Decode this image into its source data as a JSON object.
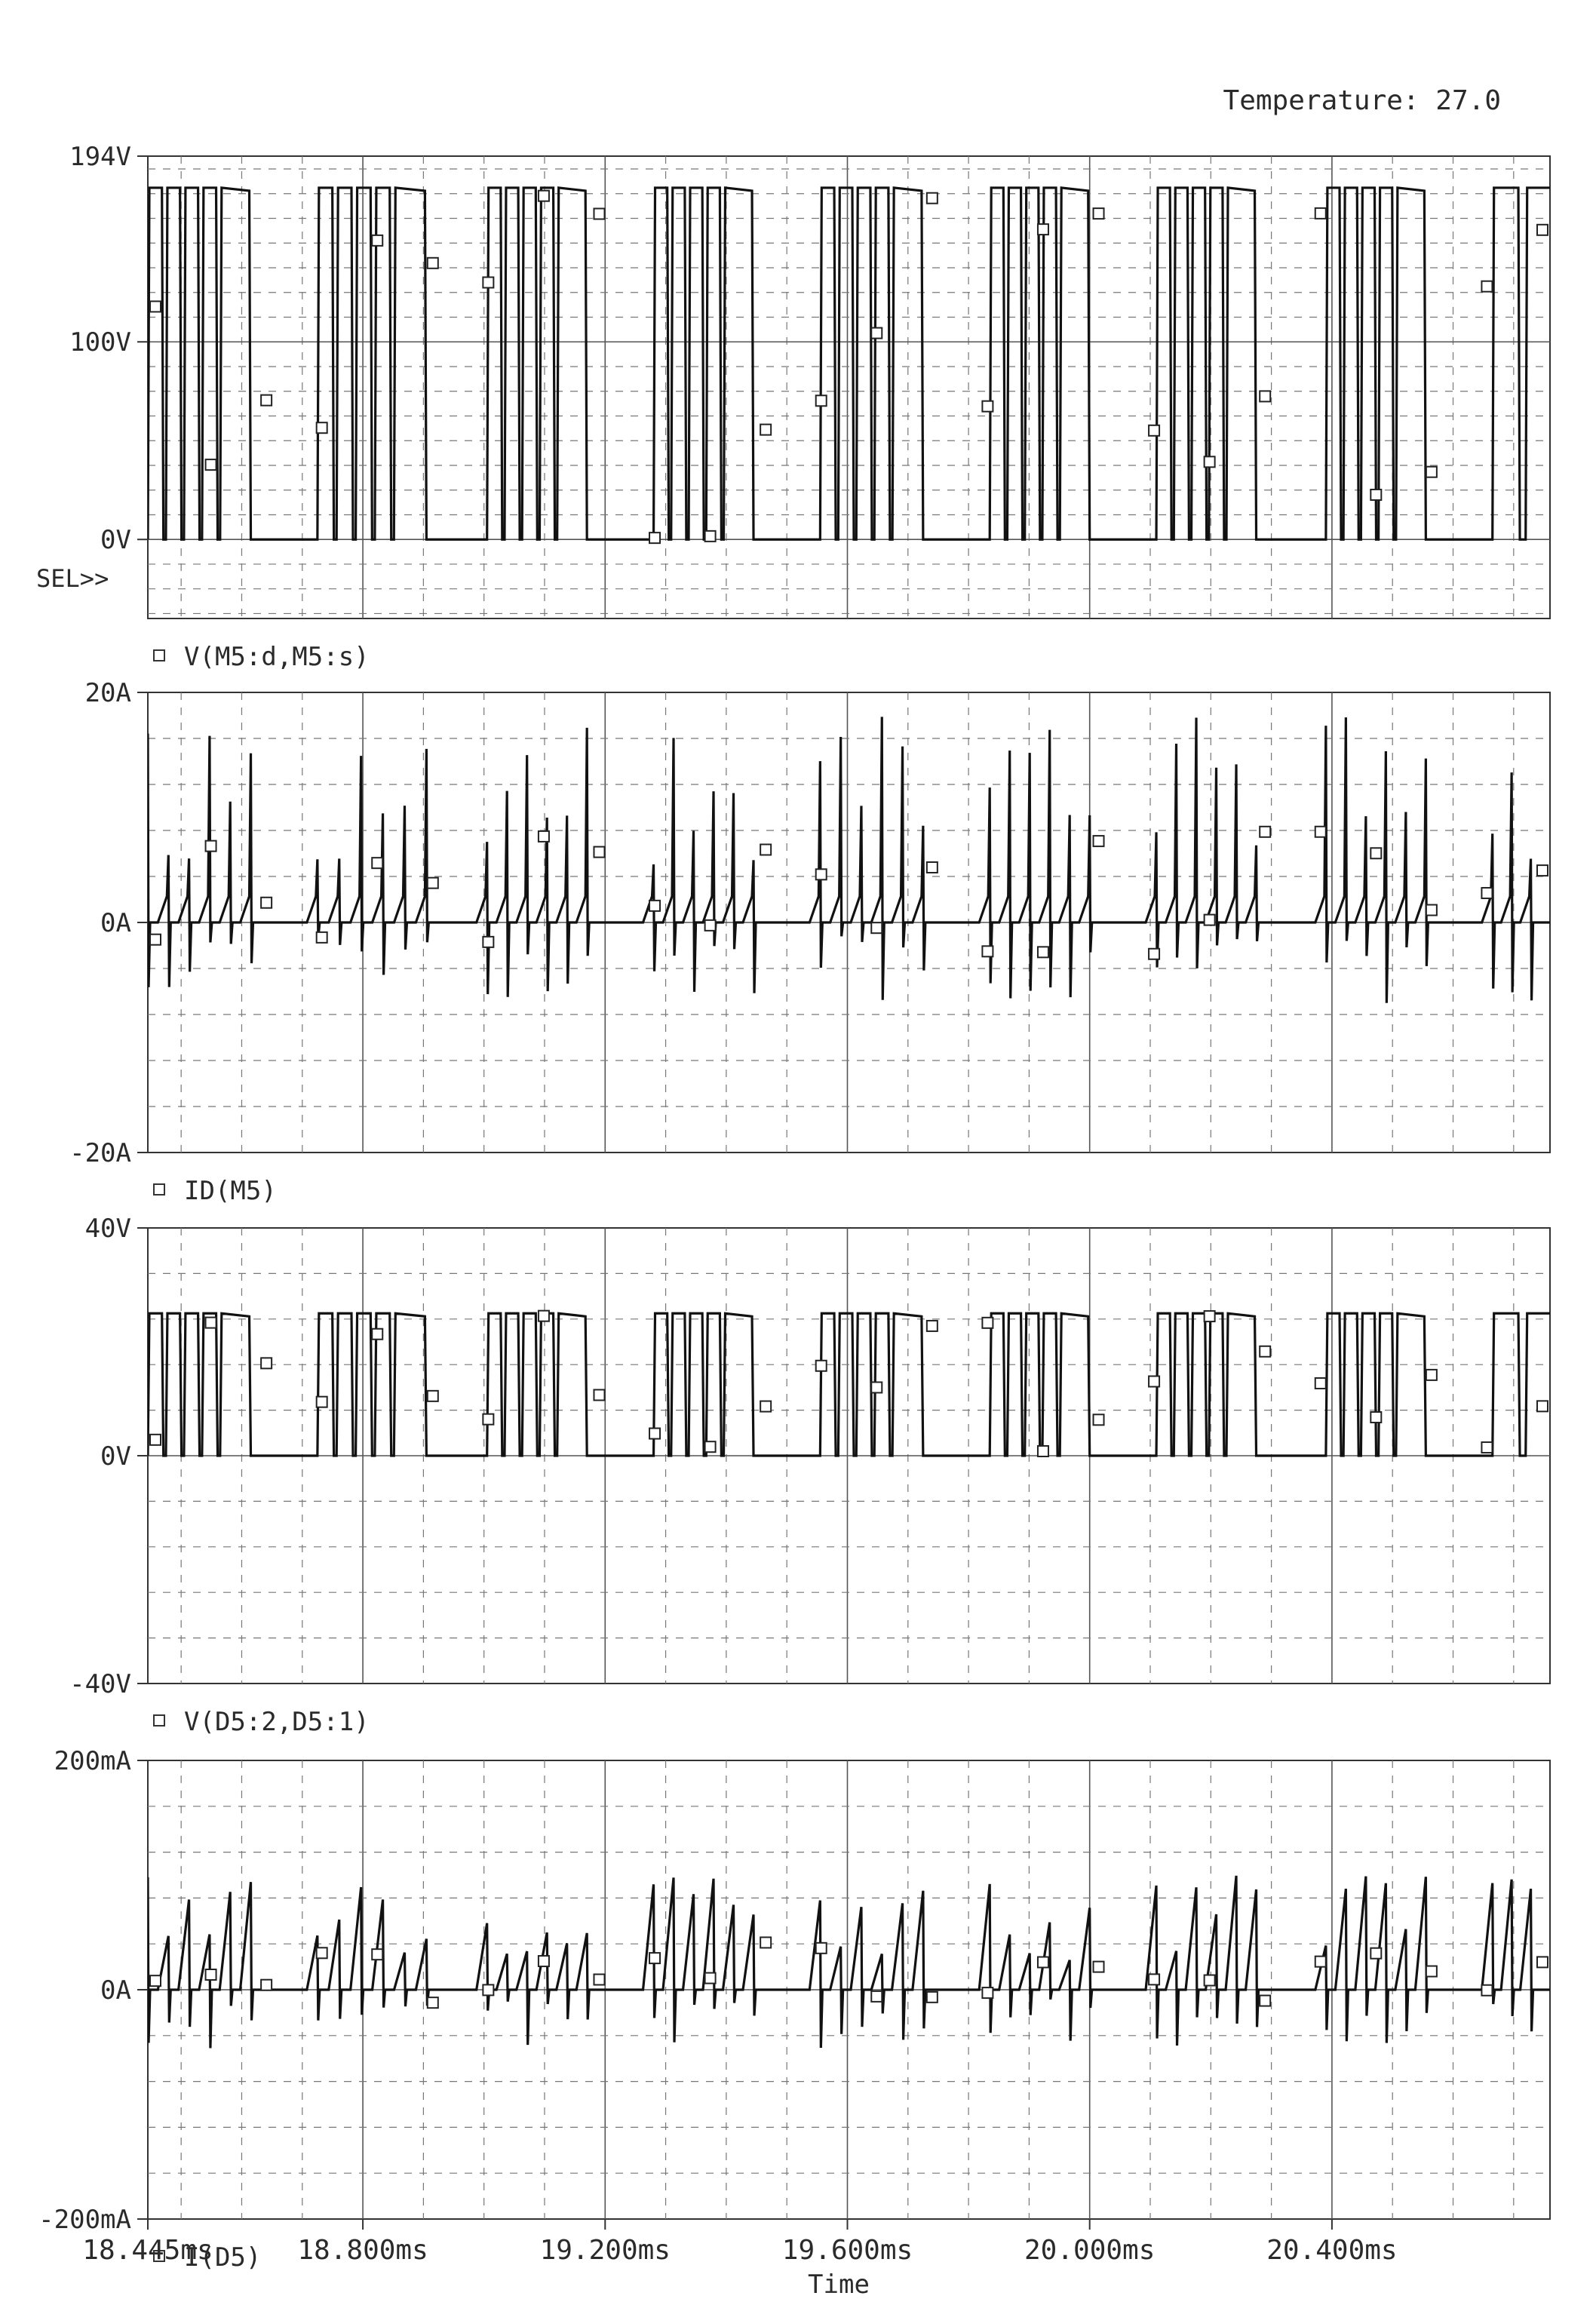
{
  "header": {
    "temperature": "Temperature: 27.0"
  },
  "select_marker": "SEL>>",
  "x_axis": {
    "label": "Time",
    "range_ms": [
      18.445,
      20.76
    ],
    "ticks": [
      {
        "value": 18.445,
        "label": "18.445ms"
      },
      {
        "value": 18.8,
        "label": "18.800ms"
      },
      {
        "value": 19.2,
        "label": "19.200ms"
      },
      {
        "value": 19.6,
        "label": "19.600ms"
      },
      {
        "value": 20.0,
        "label": "20.000ms"
      },
      {
        "value": 20.4,
        "label": "20.400ms"
      }
    ]
  },
  "chart_data": [
    {
      "type": "line",
      "trace": "V(M5:d,M5:s)",
      "unit": "V",
      "ylim": [
        -40,
        194
      ],
      "yticks": [
        {
          "value": 194,
          "label": "194V"
        },
        {
          "value": 100,
          "label": "100V"
        },
        {
          "value": 0,
          "label": "0V"
        }
      ],
      "high": 178,
      "low": 0,
      "bursts": [
        {
          "start": 18.445,
          "end": 18.615,
          "pulses": 4
        },
        {
          "start": 18.725,
          "end": 18.905,
          "pulses": 4
        },
        {
          "start": 19.005,
          "end": 19.17,
          "pulses": 4
        },
        {
          "start": 19.28,
          "end": 19.445,
          "pulses": 4
        },
        {
          "start": 19.555,
          "end": 19.725,
          "pulses": 4
        },
        {
          "start": 19.835,
          "end": 20.0,
          "pulses": 4
        },
        {
          "start": 20.11,
          "end": 20.275,
          "pulses": 4
        },
        {
          "start": 20.39,
          "end": 20.555,
          "pulses": 4
        },
        {
          "start": 20.665,
          "end": 20.76,
          "pulses": 2
        }
      ],
      "grid": true
    },
    {
      "type": "line",
      "trace": "ID(M5)",
      "unit": "A",
      "ylim": [
        -20,
        20
      ],
      "yticks": [
        {
          "value": 20,
          "label": "20A"
        },
        {
          "value": 0,
          "label": "0A"
        },
        {
          "value": -20,
          "label": "-20A"
        }
      ],
      "spike_max": 19,
      "spike_min": -10,
      "grid": true
    },
    {
      "type": "line",
      "trace": "V(D5:2,D5:1)",
      "unit": "V",
      "ylim": [
        -40,
        40
      ],
      "yticks": [
        {
          "value": 40,
          "label": "40V"
        },
        {
          "value": 0,
          "label": "0V"
        },
        {
          "value": -40,
          "label": "-40V"
        }
      ],
      "high": 25,
      "low": 0,
      "grid": true
    },
    {
      "type": "line",
      "trace": "I(D5)",
      "unit": "mA",
      "ylim": [
        -200,
        200
      ],
      "yticks": [
        {
          "value": 200,
          "label": "200mA"
        },
        {
          "value": 0,
          "label": "0A"
        },
        {
          "value": -200,
          "label": "-200mA"
        }
      ],
      "spike_max": 100,
      "spike_min": -75,
      "grid": true
    }
  ]
}
